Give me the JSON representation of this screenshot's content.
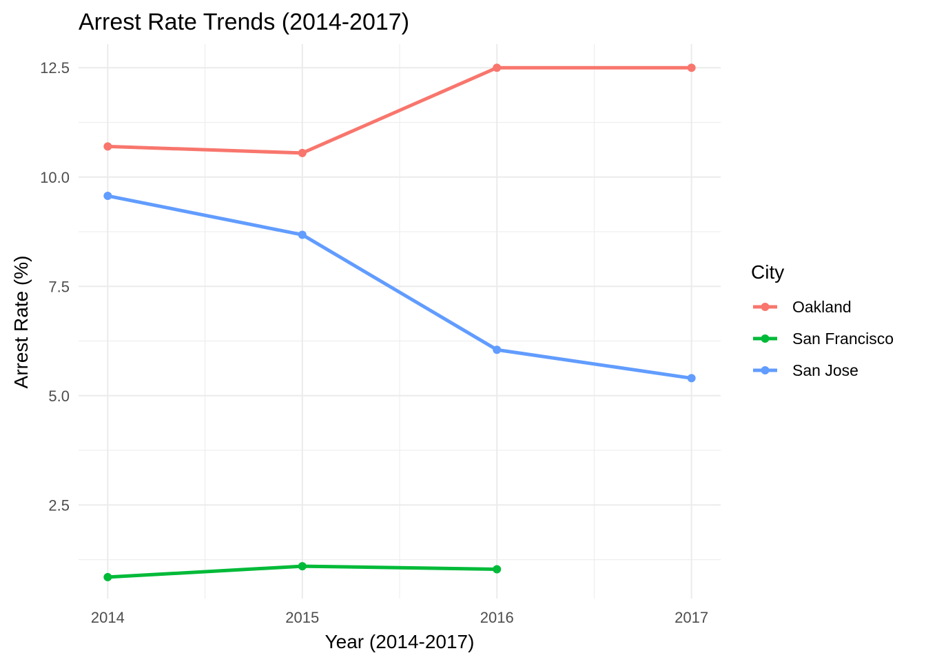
{
  "chart_data": {
    "type": "line",
    "title": "Arrest Rate Trends (2014-2017)",
    "xlabel": "Year (2014-2017)",
    "ylabel": "Arrest Rate (%)",
    "x": [
      2014,
      2015,
      2016,
      2017
    ],
    "x_tick_labels": [
      "2014",
      "2015",
      "2016",
      "2017"
    ],
    "xlim": [
      2013.85,
      2017.15
    ],
    "ylim": [
      0.36,
      13.04
    ],
    "y_ticks": [
      2.5,
      5.0,
      7.5,
      10.0,
      12.5
    ],
    "y_tick_labels": [
      "2.5",
      "5.0",
      "7.5",
      "10.0",
      "12.5"
    ],
    "grid": true,
    "legend": {
      "title": "City",
      "position": "right"
    },
    "series": [
      {
        "name": "Oakland",
        "color": "#F8766D",
        "values": [
          10.7,
          10.55,
          12.5,
          12.5
        ]
      },
      {
        "name": "San Francisco",
        "color": "#00BA38",
        "values": [
          0.85,
          1.1,
          1.03,
          null
        ]
      },
      {
        "name": "San Jose",
        "color": "#619CFF",
        "values": [
          9.57,
          8.68,
          6.05,
          5.4
        ]
      }
    ]
  }
}
